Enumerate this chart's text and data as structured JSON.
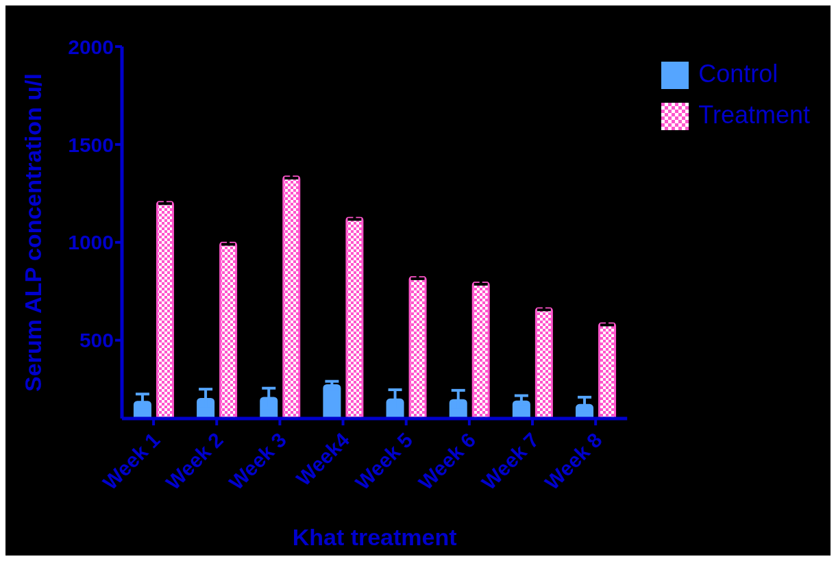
{
  "chart_data": {
    "type": "bar",
    "xlabel": "Khat treatment",
    "ylabel": "Serum ALP concentration u/l",
    "categories": [
      "Week 1",
      "Week 2",
      "Week 3",
      "Week4",
      "Week 5",
      "Week 6",
      "Week 7",
      "Week 8"
    ],
    "series": [
      {
        "name": "Control",
        "color": "#55a5ff",
        "values": [
          185,
          200,
          205,
          270,
          197,
          194,
          187,
          169
        ],
        "errors": [
          40,
          50,
          50,
          20,
          50,
          50,
          30,
          40
        ]
      },
      {
        "name": "Treatment",
        "color": "#ff55cc",
        "values": [
          1208,
          1000,
          1338,
          1127,
          824,
          796,
          665,
          588
        ],
        "errors": [
          10,
          10,
          10,
          10,
          10,
          10,
          10,
          10
        ]
      }
    ],
    "ylim": [
      100,
      2000
    ],
    "yticks": [
      500,
      1000,
      1500,
      2000
    ],
    "grid": false,
    "legend": "top right"
  }
}
